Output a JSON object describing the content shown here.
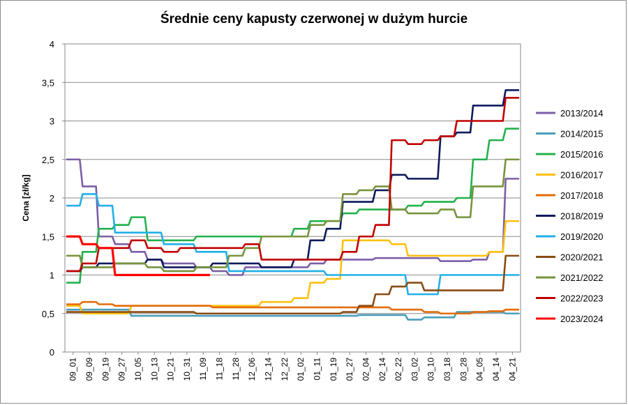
{
  "chart_data": {
    "type": "line",
    "title": "Średnie ceny kapusty czerwonej w dużym hurcie",
    "xlabel": "",
    "ylabel": "Cena [zł/kg]",
    "ylim": [
      0,
      4
    ],
    "yticks": [
      {
        "value": 0,
        "label": "0"
      },
      {
        "value": 0.5,
        "label": "0,5"
      },
      {
        "value": 1,
        "label": "1"
      },
      {
        "value": 1.5,
        "label": "1,5"
      },
      {
        "value": 2,
        "label": "2"
      },
      {
        "value": 2.5,
        "label": "2,5"
      },
      {
        "value": 3,
        "label": "3"
      },
      {
        "value": 3.5,
        "label": "3,5"
      },
      {
        "value": 4,
        "label": "4"
      }
    ],
    "x_categories": [
      "09_01",
      "09_09",
      "09_19",
      "09_27",
      "10_05",
      "10_13",
      "10_21",
      "10_31",
      "11_09",
      "11_18",
      "11_28",
      "12_06",
      "12_14",
      "12_22",
      "01_02",
      "01_11",
      "01_19",
      "01_27",
      "02_04",
      "02_14",
      "02_22",
      "03_02",
      "03_10",
      "03_18",
      "03_28",
      "04_05",
      "04_14",
      "04_21"
    ],
    "grid": "horizontal",
    "legend_position": "right",
    "series": [
      {
        "name": "2013/2014",
        "color": "#7b5ea7",
        "values": [
          2.5,
          2.15,
          1.5,
          1.4,
          1.3,
          1.2,
          1.15,
          1.15,
          1.1,
          1.05,
          1.0,
          1.1,
          1.1,
          1.1,
          1.1,
          1.15,
          1.2,
          1.2,
          1.2,
          1.22,
          1.22,
          1.22,
          1.22,
          1.18,
          1.18,
          1.2,
          1.3,
          2.25
        ]
      },
      {
        "name": "2014/2015",
        "color": "#4a9ebc",
        "values": [
          0.55,
          0.55,
          0.55,
          0.55,
          0.47,
          0.47,
          0.47,
          0.47,
          0.47,
          0.47,
          0.47,
          0.47,
          0.47,
          0.47,
          0.47,
          0.47,
          0.47,
          0.47,
          0.48,
          0.48,
          0.48,
          0.42,
          0.45,
          0.45,
          0.52,
          0.52,
          0.52,
          0.5
        ]
      },
      {
        "name": "2015/2016",
        "color": "#22b14c",
        "values": [
          0.9,
          1.3,
          1.6,
          1.65,
          1.75,
          1.45,
          1.45,
          1.45,
          1.5,
          1.5,
          1.5,
          1.5,
          1.5,
          1.5,
          1.6,
          1.7,
          1.7,
          1.8,
          1.85,
          1.85,
          1.85,
          1.9,
          1.95,
          1.95,
          2.0,
          2.5,
          2.75,
          2.9
        ]
      },
      {
        "name": "2016/2017",
        "color": "#fdc00f",
        "values": [
          0.6,
          0.5,
          0.5,
          0.5,
          0.6,
          0.6,
          0.6,
          0.6,
          0.6,
          0.6,
          0.6,
          0.6,
          0.65,
          0.65,
          0.7,
          0.9,
          0.95,
          1.45,
          1.45,
          1.45,
          1.4,
          1.25,
          1.25,
          1.25,
          1.25,
          1.25,
          1.3,
          1.7
        ]
      },
      {
        "name": "2017/2018",
        "color": "#e46c0a",
        "values": [
          0.62,
          0.65,
          0.62,
          0.6,
          0.6,
          0.6,
          0.6,
          0.6,
          0.6,
          0.58,
          0.58,
          0.58,
          0.58,
          0.58,
          0.58,
          0.58,
          0.58,
          0.58,
          0.58,
          0.58,
          0.55,
          0.55,
          0.52,
          0.5,
          0.5,
          0.52,
          0.53,
          0.55
        ]
      },
      {
        "name": "2018/2019",
        "color": "#0d1a5c",
        "values": [
          1.05,
          1.1,
          1.15,
          1.15,
          1.15,
          1.2,
          1.1,
          1.1,
          1.1,
          1.15,
          1.15,
          1.15,
          1.1,
          1.1,
          1.2,
          1.45,
          1.6,
          1.95,
          1.95,
          2.1,
          2.3,
          2.25,
          2.25,
          2.8,
          2.85,
          3.2,
          3.2,
          3.4
        ]
      },
      {
        "name": "2019/2020",
        "color": "#21b0e8",
        "values": [
          1.9,
          2.05,
          1.9,
          1.55,
          1.55,
          1.55,
          1.4,
          1.4,
          1.3,
          1.3,
          1.05,
          1.05,
          1.05,
          1.05,
          1.05,
          1.05,
          1.0,
          1.0,
          1.0,
          1.0,
          1.0,
          0.75,
          0.75,
          1.0,
          1.0,
          1.0,
          1.0,
          1.0
        ]
      },
      {
        "name": "2020/2021",
        "color": "#8b4c13",
        "values": [
          0.52,
          0.52,
          0.52,
          0.52,
          0.52,
          0.52,
          0.52,
          0.52,
          0.5,
          0.5,
          0.5,
          0.5,
          0.5,
          0.5,
          0.5,
          0.5,
          0.5,
          0.52,
          0.6,
          0.75,
          0.85,
          0.9,
          0.8,
          0.8,
          0.8,
          0.8,
          0.8,
          1.25
        ]
      },
      {
        "name": "2021/2022",
        "color": "#77933c",
        "values": [
          1.25,
          1.1,
          1.1,
          1.15,
          1.15,
          1.1,
          1.05,
          1.05,
          1.1,
          1.1,
          1.25,
          1.35,
          1.5,
          1.5,
          1.5,
          1.65,
          1.7,
          2.05,
          2.1,
          2.15,
          1.85,
          1.8,
          1.8,
          1.85,
          1.75,
          2.15,
          2.15,
          2.5
        ]
      },
      {
        "name": "2022/2023",
        "color": "#c00000",
        "values": [
          1.05,
          1.15,
          1.35,
          1.35,
          1.45,
          1.35,
          1.3,
          1.35,
          1.35,
          1.35,
          1.35,
          1.4,
          1.2,
          1.2,
          1.2,
          1.2,
          1.2,
          1.3,
          1.5,
          1.65,
          2.75,
          2.7,
          2.75,
          2.8,
          3.0,
          3.0,
          3.0,
          3.3
        ]
      },
      {
        "name": "2023/2024",
        "color": "#ff0000",
        "values": [
          1.5,
          1.4,
          1.35,
          1.0,
          1.0,
          1.0,
          1.0,
          1.0,
          1.0,
          null,
          null,
          null,
          null,
          null,
          null,
          null,
          null,
          null,
          null,
          null,
          null,
          null,
          null,
          null,
          null,
          null,
          null,
          null
        ]
      }
    ]
  }
}
